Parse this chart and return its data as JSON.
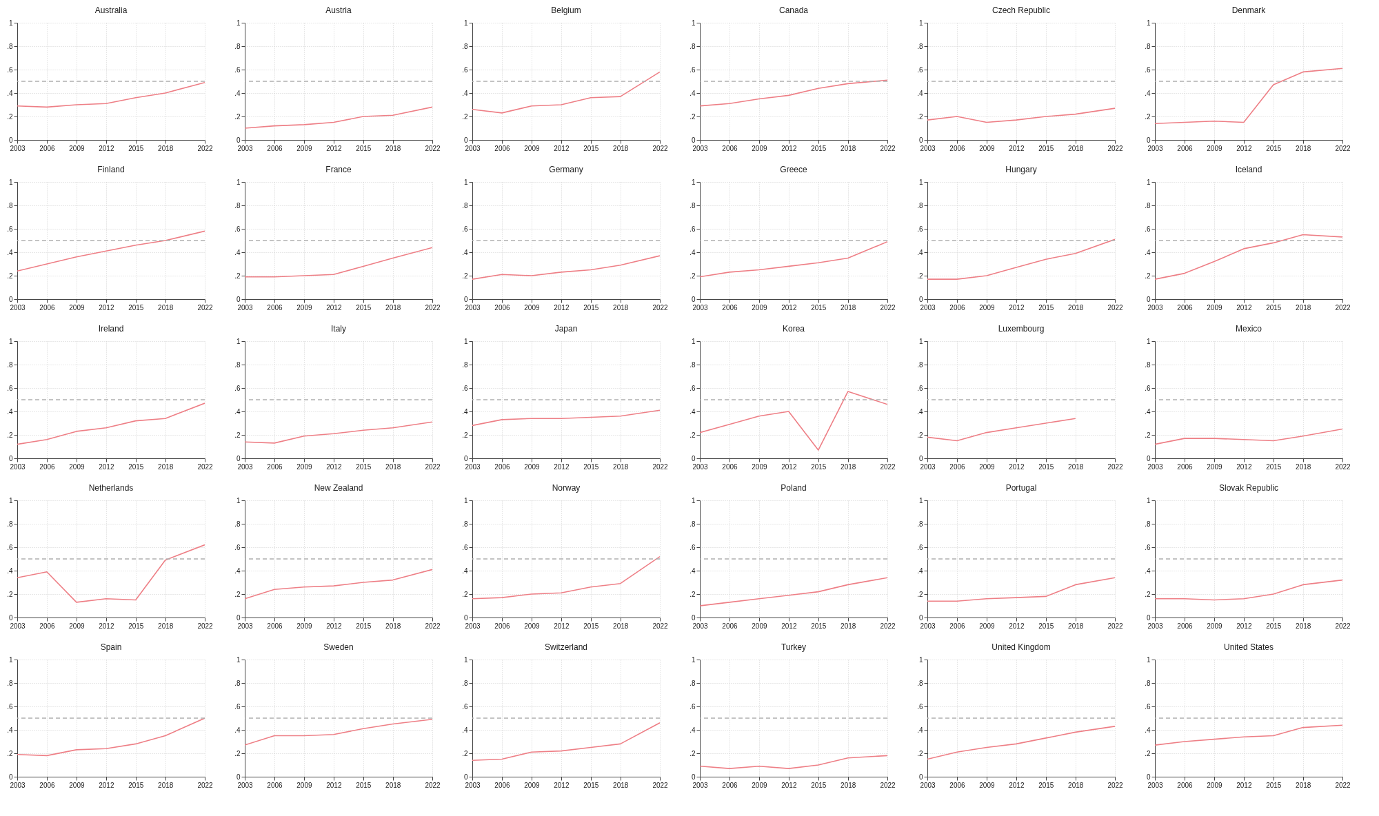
{
  "chart_data": [
    {
      "type": "line",
      "title": "Australia",
      "x": [
        2003,
        2006,
        2009,
        2012,
        2015,
        2018,
        2022
      ],
      "values": [
        0.29,
        0.28,
        0.3,
        0.31,
        0.36,
        0.4,
        0.49
      ],
      "color": "#ee7f86",
      "xlim": [
        2003,
        2022
      ],
      "ylim": [
        0,
        1
      ],
      "xticks": [
        2003,
        2006,
        2009,
        2012,
        2015,
        2018,
        2022
      ],
      "yticks": [
        {
          "value": 0,
          "label": "0"
        },
        {
          "value": 0.2,
          "label": ".2"
        },
        {
          "value": 0.4,
          "label": ".4"
        },
        {
          "value": 0.6,
          "label": ".6"
        },
        {
          "value": 0.8,
          "label": ".8"
        },
        {
          "value": 1,
          "label": "1"
        }
      ],
      "grid": true,
      "ref_lines": [
        {
          "axis": "y",
          "value": 0.5,
          "color": "#b0b0b0",
          "line_style": "dashed"
        }
      ]
    },
    {
      "type": "line",
      "title": "Austria",
      "x": [
        2003,
        2006,
        2009,
        2012,
        2015,
        2018,
        2022
      ],
      "values": [
        0.1,
        0.12,
        0.13,
        0.15,
        0.2,
        0.21,
        0.28
      ],
      "color": "#ee7f86",
      "xlim": [
        2003,
        2022
      ],
      "ylim": [
        0,
        1
      ],
      "xticks": [
        2003,
        2006,
        2009,
        2012,
        2015,
        2018,
        2022
      ],
      "yticks": [
        {
          "value": 0,
          "label": "0"
        },
        {
          "value": 0.2,
          "label": ".2"
        },
        {
          "value": 0.4,
          "label": ".4"
        },
        {
          "value": 0.6,
          "label": ".6"
        },
        {
          "value": 0.8,
          "label": ".8"
        },
        {
          "value": 1,
          "label": "1"
        }
      ],
      "grid": true,
      "ref_lines": [
        {
          "axis": "y",
          "value": 0.5,
          "color": "#b0b0b0",
          "line_style": "dashed"
        }
      ]
    },
    {
      "type": "line",
      "title": "Belgium",
      "x": [
        2003,
        2006,
        2009,
        2012,
        2015,
        2018,
        2022
      ],
      "values": [
        0.26,
        0.23,
        0.29,
        0.3,
        0.36,
        0.37,
        0.58
      ],
      "color": "#ee7f86",
      "xlim": [
        2003,
        2022
      ],
      "ylim": [
        0,
        1
      ],
      "xticks": [
        2003,
        2006,
        2009,
        2012,
        2015,
        2018,
        2022
      ],
      "yticks": [
        {
          "value": 0,
          "label": "0"
        },
        {
          "value": 0.2,
          "label": ".2"
        },
        {
          "value": 0.4,
          "label": ".4"
        },
        {
          "value": 0.6,
          "label": ".6"
        },
        {
          "value": 0.8,
          "label": ".8"
        },
        {
          "value": 1,
          "label": "1"
        }
      ],
      "grid": true,
      "ref_lines": [
        {
          "axis": "y",
          "value": 0.5,
          "color": "#b0b0b0",
          "line_style": "dashed"
        }
      ]
    },
    {
      "type": "line",
      "title": "Canada",
      "x": [
        2003,
        2006,
        2009,
        2012,
        2015,
        2018,
        2022
      ],
      "values": [
        0.29,
        0.31,
        0.35,
        0.38,
        0.44,
        0.48,
        0.51
      ],
      "color": "#ee7f86",
      "xlim": [
        2003,
        2022
      ],
      "ylim": [
        0,
        1
      ],
      "xticks": [
        2003,
        2006,
        2009,
        2012,
        2015,
        2018,
        2022
      ],
      "yticks": [
        {
          "value": 0,
          "label": "0"
        },
        {
          "value": 0.2,
          "label": ".2"
        },
        {
          "value": 0.4,
          "label": ".4"
        },
        {
          "value": 0.6,
          "label": ".6"
        },
        {
          "value": 0.8,
          "label": ".8"
        },
        {
          "value": 1,
          "label": "1"
        }
      ],
      "grid": true,
      "ref_lines": [
        {
          "axis": "y",
          "value": 0.5,
          "color": "#b0b0b0",
          "line_style": "dashed"
        }
      ]
    },
    {
      "type": "line",
      "title": "Czech Republic",
      "x": [
        2003,
        2006,
        2009,
        2012,
        2015,
        2018,
        2022
      ],
      "values": [
        0.17,
        0.2,
        0.15,
        0.17,
        0.2,
        0.22,
        0.27
      ],
      "color": "#ee7f86",
      "xlim": [
        2003,
        2022
      ],
      "ylim": [
        0,
        1
      ],
      "xticks": [
        2003,
        2006,
        2009,
        2012,
        2015,
        2018,
        2022
      ],
      "yticks": [
        {
          "value": 0,
          "label": "0"
        },
        {
          "value": 0.2,
          "label": ".2"
        },
        {
          "value": 0.4,
          "label": ".4"
        },
        {
          "value": 0.6,
          "label": ".6"
        },
        {
          "value": 0.8,
          "label": ".8"
        },
        {
          "value": 1,
          "label": "1"
        }
      ],
      "grid": true,
      "ref_lines": [
        {
          "axis": "y",
          "value": 0.5,
          "color": "#b0b0b0",
          "line_style": "dashed"
        }
      ]
    },
    {
      "type": "line",
      "title": "Denmark",
      "x": [
        2003,
        2006,
        2009,
        2012,
        2015,
        2018,
        2022
      ],
      "values": [
        0.14,
        0.15,
        0.16,
        0.15,
        0.47,
        0.58,
        0.61
      ],
      "color": "#ee7f86",
      "xlim": [
        2003,
        2022
      ],
      "ylim": [
        0,
        1
      ],
      "xticks": [
        2003,
        2006,
        2009,
        2012,
        2015,
        2018,
        2022
      ],
      "yticks": [
        {
          "value": 0,
          "label": "0"
        },
        {
          "value": 0.2,
          "label": ".2"
        },
        {
          "value": 0.4,
          "label": ".4"
        },
        {
          "value": 0.6,
          "label": ".6"
        },
        {
          "value": 0.8,
          "label": ".8"
        },
        {
          "value": 1,
          "label": "1"
        }
      ],
      "grid": true,
      "ref_lines": [
        {
          "axis": "y",
          "value": 0.5,
          "color": "#b0b0b0",
          "line_style": "dashed"
        }
      ]
    },
    {
      "type": "line",
      "title": "Finland",
      "x": [
        2003,
        2006,
        2009,
        2012,
        2015,
        2018,
        2022
      ],
      "values": [
        0.24,
        0.3,
        0.36,
        0.41,
        0.46,
        0.5,
        0.58
      ],
      "color": "#ee7f86",
      "xlim": [
        2003,
        2022
      ],
      "ylim": [
        0,
        1
      ],
      "xticks": [
        2003,
        2006,
        2009,
        2012,
        2015,
        2018,
        2022
      ],
      "yticks": [
        {
          "value": 0,
          "label": "0"
        },
        {
          "value": 0.2,
          "label": ".2"
        },
        {
          "value": 0.4,
          "label": ".4"
        },
        {
          "value": 0.6,
          "label": ".6"
        },
        {
          "value": 0.8,
          "label": ".8"
        },
        {
          "value": 1,
          "label": "1"
        }
      ],
      "grid": true,
      "ref_lines": [
        {
          "axis": "y",
          "value": 0.5,
          "color": "#b0b0b0",
          "line_style": "dashed"
        }
      ]
    },
    {
      "type": "line",
      "title": "France",
      "x": [
        2003,
        2006,
        2009,
        2012,
        2015,
        2018,
        2022
      ],
      "values": [
        0.19,
        0.19,
        0.2,
        0.21,
        0.28,
        0.35,
        0.44
      ],
      "color": "#ee7f86",
      "xlim": [
        2003,
        2022
      ],
      "ylim": [
        0,
        1
      ],
      "xticks": [
        2003,
        2006,
        2009,
        2012,
        2015,
        2018,
        2022
      ],
      "yticks": [
        {
          "value": 0,
          "label": "0"
        },
        {
          "value": 0.2,
          "label": ".2"
        },
        {
          "value": 0.4,
          "label": ".4"
        },
        {
          "value": 0.6,
          "label": ".6"
        },
        {
          "value": 0.8,
          "label": ".8"
        },
        {
          "value": 1,
          "label": "1"
        }
      ],
      "grid": true,
      "ref_lines": [
        {
          "axis": "y",
          "value": 0.5,
          "color": "#b0b0b0",
          "line_style": "dashed"
        }
      ]
    },
    {
      "type": "line",
      "title": "Germany",
      "x": [
        2003,
        2006,
        2009,
        2012,
        2015,
        2018,
        2022
      ],
      "values": [
        0.17,
        0.21,
        0.2,
        0.23,
        0.25,
        0.29,
        0.37
      ],
      "color": "#ee7f86",
      "xlim": [
        2003,
        2022
      ],
      "ylim": [
        0,
        1
      ],
      "xticks": [
        2003,
        2006,
        2009,
        2012,
        2015,
        2018,
        2022
      ],
      "yticks": [
        {
          "value": 0,
          "label": "0"
        },
        {
          "value": 0.2,
          "label": ".2"
        },
        {
          "value": 0.4,
          "label": ".4"
        },
        {
          "value": 0.6,
          "label": ".6"
        },
        {
          "value": 0.8,
          "label": ".8"
        },
        {
          "value": 1,
          "label": "1"
        }
      ],
      "grid": true,
      "ref_lines": [
        {
          "axis": "y",
          "value": 0.5,
          "color": "#b0b0b0",
          "line_style": "dashed"
        }
      ]
    },
    {
      "type": "line",
      "title": "Greece",
      "x": [
        2003,
        2006,
        2009,
        2012,
        2015,
        2018,
        2022
      ],
      "values": [
        0.19,
        0.23,
        0.25,
        0.28,
        0.31,
        0.35,
        0.49
      ],
      "color": "#ee7f86",
      "xlim": [
        2003,
        2022
      ],
      "ylim": [
        0,
        1
      ],
      "xticks": [
        2003,
        2006,
        2009,
        2012,
        2015,
        2018,
        2022
      ],
      "yticks": [
        {
          "value": 0,
          "label": "0"
        },
        {
          "value": 0.2,
          "label": ".2"
        },
        {
          "value": 0.4,
          "label": ".4"
        },
        {
          "value": 0.6,
          "label": ".6"
        },
        {
          "value": 0.8,
          "label": ".8"
        },
        {
          "value": 1,
          "label": "1"
        }
      ],
      "grid": true,
      "ref_lines": [
        {
          "axis": "y",
          "value": 0.5,
          "color": "#b0b0b0",
          "line_style": "dashed"
        }
      ]
    },
    {
      "type": "line",
      "title": "Hungary",
      "x": [
        2003,
        2006,
        2009,
        2012,
        2015,
        2018,
        2022
      ],
      "values": [
        0.17,
        0.17,
        0.2,
        0.27,
        0.34,
        0.39,
        0.51
      ],
      "color": "#ee7f86",
      "xlim": [
        2003,
        2022
      ],
      "ylim": [
        0,
        1
      ],
      "xticks": [
        2003,
        2006,
        2009,
        2012,
        2015,
        2018,
        2022
      ],
      "yticks": [
        {
          "value": 0,
          "label": "0"
        },
        {
          "value": 0.2,
          "label": ".2"
        },
        {
          "value": 0.4,
          "label": ".4"
        },
        {
          "value": 0.6,
          "label": ".6"
        },
        {
          "value": 0.8,
          "label": ".8"
        },
        {
          "value": 1,
          "label": "1"
        }
      ],
      "grid": true,
      "ref_lines": [
        {
          "axis": "y",
          "value": 0.5,
          "color": "#b0b0b0",
          "line_style": "dashed"
        }
      ]
    },
    {
      "type": "line",
      "title": "Iceland",
      "x": [
        2003,
        2006,
        2009,
        2012,
        2015,
        2018,
        2022
      ],
      "values": [
        0.17,
        0.22,
        0.32,
        0.43,
        0.48,
        0.55,
        0.53
      ],
      "color": "#ee7f86",
      "xlim": [
        2003,
        2022
      ],
      "ylim": [
        0,
        1
      ],
      "xticks": [
        2003,
        2006,
        2009,
        2012,
        2015,
        2018,
        2022
      ],
      "yticks": [
        {
          "value": 0,
          "label": "0"
        },
        {
          "value": 0.2,
          "label": ".2"
        },
        {
          "value": 0.4,
          "label": ".4"
        },
        {
          "value": 0.6,
          "label": ".6"
        },
        {
          "value": 0.8,
          "label": ".8"
        },
        {
          "value": 1,
          "label": "1"
        }
      ],
      "grid": true,
      "ref_lines": [
        {
          "axis": "y",
          "value": 0.5,
          "color": "#b0b0b0",
          "line_style": "dashed"
        }
      ]
    },
    {
      "type": "line",
      "title": "Ireland",
      "x": [
        2003,
        2006,
        2009,
        2012,
        2015,
        2018,
        2022
      ],
      "values": [
        0.12,
        0.16,
        0.23,
        0.26,
        0.32,
        0.34,
        0.47
      ],
      "color": "#ee7f86",
      "xlim": [
        2003,
        2022
      ],
      "ylim": [
        0,
        1
      ],
      "xticks": [
        2003,
        2006,
        2009,
        2012,
        2015,
        2018,
        2022
      ],
      "yticks": [
        {
          "value": 0,
          "label": "0"
        },
        {
          "value": 0.2,
          "label": ".2"
        },
        {
          "value": 0.4,
          "label": ".4"
        },
        {
          "value": 0.6,
          "label": ".6"
        },
        {
          "value": 0.8,
          "label": ".8"
        },
        {
          "value": 1,
          "label": "1"
        }
      ],
      "grid": true,
      "ref_lines": [
        {
          "axis": "y",
          "value": 0.5,
          "color": "#b0b0b0",
          "line_style": "dashed"
        }
      ]
    },
    {
      "type": "line",
      "title": "Italy",
      "x": [
        2003,
        2006,
        2009,
        2012,
        2015,
        2018,
        2022
      ],
      "values": [
        0.14,
        0.13,
        0.19,
        0.21,
        0.24,
        0.26,
        0.31
      ],
      "color": "#ee7f86",
      "xlim": [
        2003,
        2022
      ],
      "ylim": [
        0,
        1
      ],
      "xticks": [
        2003,
        2006,
        2009,
        2012,
        2015,
        2018,
        2022
      ],
      "yticks": [
        {
          "value": 0,
          "label": "0"
        },
        {
          "value": 0.2,
          "label": ".2"
        },
        {
          "value": 0.4,
          "label": ".4"
        },
        {
          "value": 0.6,
          "label": ".6"
        },
        {
          "value": 0.8,
          "label": ".8"
        },
        {
          "value": 1,
          "label": "1"
        }
      ],
      "grid": true,
      "ref_lines": [
        {
          "axis": "y",
          "value": 0.5,
          "color": "#b0b0b0",
          "line_style": "dashed"
        }
      ]
    },
    {
      "type": "line",
      "title": "Japan",
      "x": [
        2003,
        2006,
        2009,
        2012,
        2015,
        2018,
        2022
      ],
      "values": [
        0.28,
        0.33,
        0.34,
        0.34,
        0.35,
        0.36,
        0.41
      ],
      "color": "#ee7f86",
      "xlim": [
        2003,
        2022
      ],
      "ylim": [
        0,
        1
      ],
      "xticks": [
        2003,
        2006,
        2009,
        2012,
        2015,
        2018,
        2022
      ],
      "yticks": [
        {
          "value": 0,
          "label": "0"
        },
        {
          "value": 0.2,
          "label": ".2"
        },
        {
          "value": 0.4,
          "label": ".4"
        },
        {
          "value": 0.6,
          "label": ".6"
        },
        {
          "value": 0.8,
          "label": ".8"
        },
        {
          "value": 1,
          "label": "1"
        }
      ],
      "grid": true,
      "ref_lines": [
        {
          "axis": "y",
          "value": 0.5,
          "color": "#b0b0b0",
          "line_style": "dashed"
        }
      ]
    },
    {
      "type": "line",
      "title": "Korea",
      "x": [
        2003,
        2006,
        2009,
        2012,
        2015,
        2018,
        2022
      ],
      "values": [
        0.22,
        0.29,
        0.36,
        0.4,
        0.07,
        0.57,
        0.46
      ],
      "color": "#ee7f86",
      "xlim": [
        2003,
        2022
      ],
      "ylim": [
        0,
        1
      ],
      "xticks": [
        2003,
        2006,
        2009,
        2012,
        2015,
        2018,
        2022
      ],
      "yticks": [
        {
          "value": 0,
          "label": "0"
        },
        {
          "value": 0.2,
          "label": ".2"
        },
        {
          "value": 0.4,
          "label": ".4"
        },
        {
          "value": 0.6,
          "label": ".6"
        },
        {
          "value": 0.8,
          "label": ".8"
        },
        {
          "value": 1,
          "label": "1"
        }
      ],
      "grid": true,
      "ref_lines": [
        {
          "axis": "y",
          "value": 0.5,
          "color": "#b0b0b0",
          "line_style": "dashed"
        }
      ]
    },
    {
      "type": "line",
      "title": "Luxembourg",
      "x": [
        2003,
        2006,
        2009,
        2012,
        2015,
        2018
      ],
      "values": [
        0.18,
        0.15,
        0.22,
        0.26,
        0.3,
        0.34
      ],
      "color": "#ee7f86",
      "xlim": [
        2003,
        2022
      ],
      "ylim": [
        0,
        1
      ],
      "xticks": [
        2003,
        2006,
        2009,
        2012,
        2015,
        2018,
        2022
      ],
      "yticks": [
        {
          "value": 0,
          "label": "0"
        },
        {
          "value": 0.2,
          "label": ".2"
        },
        {
          "value": 0.4,
          "label": ".4"
        },
        {
          "value": 0.6,
          "label": ".6"
        },
        {
          "value": 0.8,
          "label": ".8"
        },
        {
          "value": 1,
          "label": "1"
        }
      ],
      "grid": true,
      "ref_lines": [
        {
          "axis": "y",
          "value": 0.5,
          "color": "#b0b0b0",
          "line_style": "dashed"
        }
      ]
    },
    {
      "type": "line",
      "title": "Mexico",
      "x": [
        2003,
        2006,
        2009,
        2012,
        2015,
        2018,
        2022
      ],
      "values": [
        0.12,
        0.17,
        0.17,
        0.16,
        0.15,
        0.19,
        0.25
      ],
      "color": "#ee7f86",
      "xlim": [
        2003,
        2022
      ],
      "ylim": [
        0,
        1
      ],
      "xticks": [
        2003,
        2006,
        2009,
        2012,
        2015,
        2018,
        2022
      ],
      "yticks": [
        {
          "value": 0,
          "label": "0"
        },
        {
          "value": 0.2,
          "label": ".2"
        },
        {
          "value": 0.4,
          "label": ".4"
        },
        {
          "value": 0.6,
          "label": ".6"
        },
        {
          "value": 0.8,
          "label": ".8"
        },
        {
          "value": 1,
          "label": "1"
        }
      ],
      "grid": true,
      "ref_lines": [
        {
          "axis": "y",
          "value": 0.5,
          "color": "#b0b0b0",
          "line_style": "dashed"
        }
      ]
    },
    {
      "type": "line",
      "title": "Netherlands",
      "x": [
        2003,
        2006,
        2009,
        2012,
        2015,
        2018,
        2022
      ],
      "values": [
        0.34,
        0.39,
        0.13,
        0.16,
        0.15,
        0.49,
        0.62
      ],
      "color": "#ee7f86",
      "xlim": [
        2003,
        2022
      ],
      "ylim": [
        0,
        1
      ],
      "xticks": [
        2003,
        2006,
        2009,
        2012,
        2015,
        2018,
        2022
      ],
      "yticks": [
        {
          "value": 0,
          "label": "0"
        },
        {
          "value": 0.2,
          "label": ".2"
        },
        {
          "value": 0.4,
          "label": ".4"
        },
        {
          "value": 0.6,
          "label": ".6"
        },
        {
          "value": 0.8,
          "label": ".8"
        },
        {
          "value": 1,
          "label": "1"
        }
      ],
      "grid": true,
      "ref_lines": [
        {
          "axis": "y",
          "value": 0.5,
          "color": "#b0b0b0",
          "line_style": "dashed"
        }
      ]
    },
    {
      "type": "line",
      "title": "New Zealand",
      "x": [
        2003,
        2006,
        2009,
        2012,
        2015,
        2018,
        2022
      ],
      "values": [
        0.16,
        0.24,
        0.26,
        0.27,
        0.3,
        0.32,
        0.41
      ],
      "color": "#ee7f86",
      "xlim": [
        2003,
        2022
      ],
      "ylim": [
        0,
        1
      ],
      "xticks": [
        2003,
        2006,
        2009,
        2012,
        2015,
        2018,
        2022
      ],
      "yticks": [
        {
          "value": 0,
          "label": "0"
        },
        {
          "value": 0.2,
          "label": ".2"
        },
        {
          "value": 0.4,
          "label": ".4"
        },
        {
          "value": 0.6,
          "label": ".6"
        },
        {
          "value": 0.8,
          "label": ".8"
        },
        {
          "value": 1,
          "label": "1"
        }
      ],
      "grid": true,
      "ref_lines": [
        {
          "axis": "y",
          "value": 0.5,
          "color": "#b0b0b0",
          "line_style": "dashed"
        }
      ]
    },
    {
      "type": "line",
      "title": "Norway",
      "x": [
        2003,
        2006,
        2009,
        2012,
        2015,
        2018,
        2022
      ],
      "values": [
        0.16,
        0.17,
        0.2,
        0.21,
        0.26,
        0.29,
        0.52
      ],
      "color": "#ee7f86",
      "xlim": [
        2003,
        2022
      ],
      "ylim": [
        0,
        1
      ],
      "xticks": [
        2003,
        2006,
        2009,
        2012,
        2015,
        2018,
        2022
      ],
      "yticks": [
        {
          "value": 0,
          "label": "0"
        },
        {
          "value": 0.2,
          "label": ".2"
        },
        {
          "value": 0.4,
          "label": ".4"
        },
        {
          "value": 0.6,
          "label": ".6"
        },
        {
          "value": 0.8,
          "label": ".8"
        },
        {
          "value": 1,
          "label": "1"
        }
      ],
      "grid": true,
      "ref_lines": [
        {
          "axis": "y",
          "value": 0.5,
          "color": "#b0b0b0",
          "line_style": "dashed"
        }
      ]
    },
    {
      "type": "line",
      "title": "Poland",
      "x": [
        2003,
        2006,
        2009,
        2012,
        2015,
        2018,
        2022
      ],
      "values": [
        0.1,
        0.13,
        0.16,
        0.19,
        0.22,
        0.28,
        0.34
      ],
      "color": "#ee7f86",
      "xlim": [
        2003,
        2022
      ],
      "ylim": [
        0,
        1
      ],
      "xticks": [
        2003,
        2006,
        2009,
        2012,
        2015,
        2018,
        2022
      ],
      "yticks": [
        {
          "value": 0,
          "label": "0"
        },
        {
          "value": 0.2,
          "label": ".2"
        },
        {
          "value": 0.4,
          "label": ".4"
        },
        {
          "value": 0.6,
          "label": ".6"
        },
        {
          "value": 0.8,
          "label": ".8"
        },
        {
          "value": 1,
          "label": "1"
        }
      ],
      "grid": true,
      "ref_lines": [
        {
          "axis": "y",
          "value": 0.5,
          "color": "#b0b0b0",
          "line_style": "dashed"
        }
      ]
    },
    {
      "type": "line",
      "title": "Portugal",
      "x": [
        2003,
        2006,
        2009,
        2012,
        2015,
        2018,
        2022
      ],
      "values": [
        0.14,
        0.14,
        0.16,
        0.17,
        0.18,
        0.28,
        0.34
      ],
      "color": "#ee7f86",
      "xlim": [
        2003,
        2022
      ],
      "ylim": [
        0,
        1
      ],
      "xticks": [
        2003,
        2006,
        2009,
        2012,
        2015,
        2018,
        2022
      ],
      "yticks": [
        {
          "value": 0,
          "label": "0"
        },
        {
          "value": 0.2,
          "label": ".2"
        },
        {
          "value": 0.4,
          "label": ".4"
        },
        {
          "value": 0.6,
          "label": ".6"
        },
        {
          "value": 0.8,
          "label": ".8"
        },
        {
          "value": 1,
          "label": "1"
        }
      ],
      "grid": true,
      "ref_lines": [
        {
          "axis": "y",
          "value": 0.5,
          "color": "#b0b0b0",
          "line_style": "dashed"
        }
      ]
    },
    {
      "type": "line",
      "title": "Slovak Republic",
      "x": [
        2003,
        2006,
        2009,
        2012,
        2015,
        2018,
        2022
      ],
      "values": [
        0.16,
        0.16,
        0.15,
        0.16,
        0.2,
        0.28,
        0.32
      ],
      "color": "#ee7f86",
      "xlim": [
        2003,
        2022
      ],
      "ylim": [
        0,
        1
      ],
      "xticks": [
        2003,
        2006,
        2009,
        2012,
        2015,
        2018,
        2022
      ],
      "yticks": [
        {
          "value": 0,
          "label": "0"
        },
        {
          "value": 0.2,
          "label": ".2"
        },
        {
          "value": 0.4,
          "label": ".4"
        },
        {
          "value": 0.6,
          "label": ".6"
        },
        {
          "value": 0.8,
          "label": ".8"
        },
        {
          "value": 1,
          "label": "1"
        }
      ],
      "grid": true,
      "ref_lines": [
        {
          "axis": "y",
          "value": 0.5,
          "color": "#b0b0b0",
          "line_style": "dashed"
        }
      ]
    },
    {
      "type": "line",
      "title": "Spain",
      "x": [
        2003,
        2006,
        2009,
        2012,
        2015,
        2018,
        2022
      ],
      "values": [
        0.19,
        0.18,
        0.23,
        0.24,
        0.28,
        0.35,
        0.5
      ],
      "color": "#ee7f86",
      "xlim": [
        2003,
        2022
      ],
      "ylim": [
        0,
        1
      ],
      "xticks": [
        2003,
        2006,
        2009,
        2012,
        2015,
        2018,
        2022
      ],
      "yticks": [
        {
          "value": 0,
          "label": "0"
        },
        {
          "value": 0.2,
          "label": ".2"
        },
        {
          "value": 0.4,
          "label": ".4"
        },
        {
          "value": 0.6,
          "label": ".6"
        },
        {
          "value": 0.8,
          "label": ".8"
        },
        {
          "value": 1,
          "label": "1"
        }
      ],
      "grid": true,
      "ref_lines": [
        {
          "axis": "y",
          "value": 0.5,
          "color": "#b0b0b0",
          "line_style": "dashed"
        }
      ]
    },
    {
      "type": "line",
      "title": "Sweden",
      "x": [
        2003,
        2006,
        2009,
        2012,
        2015,
        2018,
        2022
      ],
      "values": [
        0.27,
        0.35,
        0.35,
        0.36,
        0.41,
        0.45,
        0.49
      ],
      "color": "#ee7f86",
      "xlim": [
        2003,
        2022
      ],
      "ylim": [
        0,
        1
      ],
      "xticks": [
        2003,
        2006,
        2009,
        2012,
        2015,
        2018,
        2022
      ],
      "yticks": [
        {
          "value": 0,
          "label": "0"
        },
        {
          "value": 0.2,
          "label": ".2"
        },
        {
          "value": 0.4,
          "label": ".4"
        },
        {
          "value": 0.6,
          "label": ".6"
        },
        {
          "value": 0.8,
          "label": ".8"
        },
        {
          "value": 1,
          "label": "1"
        }
      ],
      "grid": true,
      "ref_lines": [
        {
          "axis": "y",
          "value": 0.5,
          "color": "#b0b0b0",
          "line_style": "dashed"
        }
      ]
    },
    {
      "type": "line",
      "title": "Switzerland",
      "x": [
        2003,
        2006,
        2009,
        2012,
        2015,
        2018,
        2022
      ],
      "values": [
        0.14,
        0.15,
        0.21,
        0.22,
        0.25,
        0.28,
        0.46
      ],
      "color": "#ee7f86",
      "xlim": [
        2003,
        2022
      ],
      "ylim": [
        0,
        1
      ],
      "xticks": [
        2003,
        2006,
        2009,
        2012,
        2015,
        2018,
        2022
      ],
      "yticks": [
        {
          "value": 0,
          "label": "0"
        },
        {
          "value": 0.2,
          "label": ".2"
        },
        {
          "value": 0.4,
          "label": ".4"
        },
        {
          "value": 0.6,
          "label": ".6"
        },
        {
          "value": 0.8,
          "label": ".8"
        },
        {
          "value": 1,
          "label": "1"
        }
      ],
      "grid": true,
      "ref_lines": [
        {
          "axis": "y",
          "value": 0.5,
          "color": "#b0b0b0",
          "line_style": "dashed"
        }
      ]
    },
    {
      "type": "line",
      "title": "Turkey",
      "x": [
        2003,
        2006,
        2009,
        2012,
        2015,
        2018,
        2022
      ],
      "values": [
        0.09,
        0.07,
        0.09,
        0.07,
        0.1,
        0.16,
        0.18
      ],
      "color": "#ee7f86",
      "xlim": [
        2003,
        2022
      ],
      "ylim": [
        0,
        1
      ],
      "xticks": [
        2003,
        2006,
        2009,
        2012,
        2015,
        2018,
        2022
      ],
      "yticks": [
        {
          "value": 0,
          "label": "0"
        },
        {
          "value": 0.2,
          "label": ".2"
        },
        {
          "value": 0.4,
          "label": ".4"
        },
        {
          "value": 0.6,
          "label": ".6"
        },
        {
          "value": 0.8,
          "label": ".8"
        },
        {
          "value": 1,
          "label": "1"
        }
      ],
      "grid": true,
      "ref_lines": [
        {
          "axis": "y",
          "value": 0.5,
          "color": "#b0b0b0",
          "line_style": "dashed"
        }
      ]
    },
    {
      "type": "line",
      "title": "United Kingdom",
      "x": [
        2003,
        2006,
        2009,
        2012,
        2015,
        2018,
        2022
      ],
      "values": [
        0.15,
        0.21,
        0.25,
        0.28,
        0.33,
        0.38,
        0.43
      ],
      "color": "#ee7f86",
      "xlim": [
        2003,
        2022
      ],
      "ylim": [
        0,
        1
      ],
      "xticks": [
        2003,
        2006,
        2009,
        2012,
        2015,
        2018,
        2022
      ],
      "yticks": [
        {
          "value": 0,
          "label": "0"
        },
        {
          "value": 0.2,
          "label": ".2"
        },
        {
          "value": 0.4,
          "label": ".4"
        },
        {
          "value": 0.6,
          "label": ".6"
        },
        {
          "value": 0.8,
          "label": ".8"
        },
        {
          "value": 1,
          "label": "1"
        }
      ],
      "grid": true,
      "ref_lines": [
        {
          "axis": "y",
          "value": 0.5,
          "color": "#b0b0b0",
          "line_style": "dashed"
        }
      ]
    },
    {
      "type": "line",
      "title": "United States",
      "x": [
        2003,
        2006,
        2009,
        2012,
        2015,
        2018,
        2022
      ],
      "values": [
        0.27,
        0.3,
        0.32,
        0.34,
        0.35,
        0.42,
        0.44
      ],
      "color": "#ee7f86",
      "xlim": [
        2003,
        2022
      ],
      "ylim": [
        0,
        1
      ],
      "xticks": [
        2003,
        2006,
        2009,
        2012,
        2015,
        2018,
        2022
      ],
      "yticks": [
        {
          "value": 0,
          "label": "0"
        },
        {
          "value": 0.2,
          "label": ".2"
        },
        {
          "value": 0.4,
          "label": ".4"
        },
        {
          "value": 0.6,
          "label": ".6"
        },
        {
          "value": 0.8,
          "label": ".8"
        },
        {
          "value": 1,
          "label": "1"
        }
      ],
      "grid": true,
      "ref_lines": [
        {
          "axis": "y",
          "value": 0.5,
          "color": "#b0b0b0",
          "line_style": "dashed"
        }
      ]
    }
  ]
}
